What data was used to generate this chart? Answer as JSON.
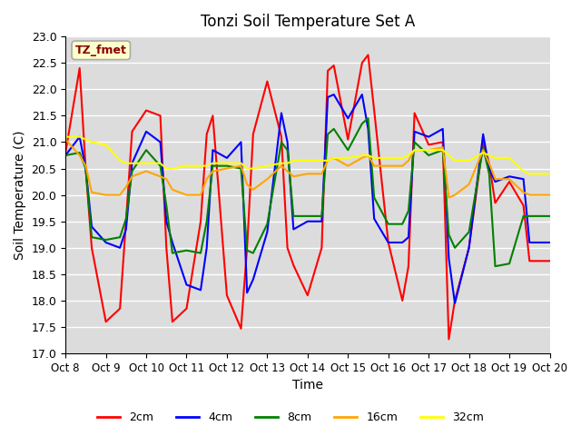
{
  "title": "Tonzi Soil Temperature Set A",
  "xlabel": "Time",
  "ylabel": "Soil Temperature (C)",
  "ylim": [
    17.0,
    23.0
  ],
  "yticks": [
    17.0,
    17.5,
    18.0,
    18.5,
    19.0,
    19.5,
    20.0,
    20.5,
    21.0,
    21.5,
    22.0,
    22.5,
    23.0
  ],
  "xtick_labels": [
    "Oct 8",
    "Oct 9",
    "Oct 10",
    "Oct 11",
    "Oct 12",
    "Oct 13",
    "Oct 14",
    "Oct 15",
    "Oct 16",
    "Oct 17",
    "Oct 18",
    "Oct 19",
    "Oct 20"
  ],
  "series_colors": [
    "red",
    "blue",
    "green",
    "orange",
    "yellow"
  ],
  "series_names": [
    "2cm",
    "4cm",
    "8cm",
    "16cm",
    "32cm"
  ],
  "legend_label": "TZ_fmet",
  "legend_label_color": "#8B0000",
  "legend_bg": "#FFFFCC",
  "background_color": "#DCDCDC",
  "x_2cm": [
    0.0,
    0.35,
    0.5,
    0.65,
    1.0,
    1.35,
    1.5,
    1.65,
    2.0,
    2.35,
    2.5,
    2.65,
    3.0,
    3.35,
    3.5,
    3.65,
    4.0,
    4.35,
    4.5,
    4.65,
    5.0,
    5.35,
    5.5,
    5.65,
    6.0,
    6.35,
    6.5,
    6.65,
    7.0,
    7.35,
    7.5,
    7.65,
    8.0,
    8.35,
    8.5,
    8.65,
    9.0,
    9.35,
    9.5,
    9.65,
    10.0,
    10.35,
    10.5,
    10.65,
    11.0,
    11.35,
    11.5,
    11.65,
    12.0
  ],
  "y_2cm": [
    20.8,
    22.4,
    20.5,
    19.0,
    17.6,
    17.85,
    19.5,
    21.2,
    21.6,
    21.5,
    19.0,
    17.6,
    17.85,
    19.5,
    21.15,
    21.5,
    18.1,
    17.47,
    19.0,
    21.15,
    22.15,
    21.1,
    19.0,
    18.67,
    18.1,
    19.0,
    22.35,
    22.45,
    21.05,
    22.5,
    22.65,
    21.6,
    19.1,
    18.0,
    18.65,
    21.55,
    20.95,
    21.0,
    17.27,
    18.0,
    19.0,
    21.0,
    20.6,
    19.85,
    20.25,
    19.8,
    18.75,
    18.75,
    18.75
  ],
  "x_4cm": [
    0.0,
    0.35,
    0.5,
    0.65,
    1.0,
    1.35,
    1.5,
    1.65,
    2.0,
    2.35,
    2.5,
    2.65,
    3.0,
    3.35,
    3.5,
    3.65,
    4.0,
    4.35,
    4.5,
    4.65,
    5.0,
    5.35,
    5.5,
    5.65,
    6.0,
    6.35,
    6.5,
    6.65,
    7.0,
    7.35,
    7.5,
    7.65,
    8.0,
    8.35,
    8.5,
    8.65,
    9.0,
    9.35,
    9.5,
    9.65,
    10.0,
    10.35,
    10.5,
    10.65,
    11.0,
    11.35,
    11.5,
    11.65,
    12.0
  ],
  "y_4cm": [
    20.75,
    21.1,
    20.5,
    19.4,
    19.1,
    19.0,
    19.35,
    20.6,
    21.2,
    21.0,
    19.5,
    19.1,
    18.3,
    18.2,
    19.0,
    20.85,
    20.7,
    21.0,
    18.15,
    18.4,
    19.3,
    21.55,
    21.0,
    19.35,
    19.5,
    19.5,
    21.85,
    21.9,
    21.45,
    21.9,
    21.25,
    19.55,
    19.1,
    19.1,
    19.2,
    21.2,
    21.1,
    21.25,
    18.8,
    17.95,
    19.0,
    21.15,
    20.5,
    20.25,
    20.35,
    20.3,
    19.1,
    19.1,
    19.1
  ],
  "x_8cm": [
    0.0,
    0.35,
    0.5,
    0.65,
    1.0,
    1.35,
    1.5,
    1.65,
    2.0,
    2.35,
    2.5,
    2.65,
    3.0,
    3.35,
    3.5,
    3.65,
    4.0,
    4.35,
    4.5,
    4.65,
    5.0,
    5.35,
    5.5,
    5.65,
    6.0,
    6.35,
    6.5,
    6.65,
    7.0,
    7.35,
    7.5,
    7.65,
    8.0,
    8.35,
    8.5,
    8.65,
    9.0,
    9.35,
    9.5,
    9.65,
    10.0,
    10.35,
    10.5,
    10.65,
    11.0,
    11.35,
    11.5,
    11.65,
    12.0
  ],
  "y_8cm": [
    20.75,
    20.8,
    20.5,
    19.2,
    19.15,
    19.2,
    19.55,
    20.45,
    20.85,
    20.55,
    19.8,
    18.9,
    18.95,
    18.9,
    19.5,
    20.55,
    20.55,
    20.5,
    18.95,
    18.9,
    19.45,
    21.0,
    20.85,
    19.6,
    19.6,
    19.6,
    21.15,
    21.25,
    20.85,
    21.35,
    21.45,
    19.95,
    19.45,
    19.45,
    19.7,
    21.0,
    20.75,
    20.85,
    19.25,
    19.0,
    19.3,
    20.9,
    20.4,
    18.65,
    18.7,
    19.6,
    19.6,
    19.6,
    19.6
  ],
  "x_16cm": [
    0.0,
    0.35,
    0.5,
    0.65,
    1.0,
    1.35,
    1.5,
    1.65,
    2.0,
    2.35,
    2.5,
    2.65,
    3.0,
    3.35,
    3.5,
    3.65,
    4.0,
    4.35,
    4.5,
    4.65,
    5.0,
    5.35,
    5.5,
    5.65,
    6.0,
    6.35,
    6.5,
    6.65,
    7.0,
    7.35,
    7.5,
    7.65,
    8.0,
    8.35,
    8.5,
    8.65,
    9.0,
    9.35,
    9.5,
    9.65,
    10.0,
    10.35,
    10.5,
    10.65,
    11.0,
    11.35,
    11.5,
    11.65,
    12.0
  ],
  "y_16cm": [
    21.05,
    20.75,
    20.55,
    20.05,
    20.0,
    20.0,
    20.15,
    20.35,
    20.45,
    20.35,
    20.3,
    20.1,
    20.0,
    20.0,
    20.3,
    20.45,
    20.5,
    20.55,
    20.2,
    20.1,
    20.3,
    20.55,
    20.45,
    20.35,
    20.4,
    20.4,
    20.65,
    20.7,
    20.55,
    20.7,
    20.75,
    20.55,
    20.55,
    20.55,
    20.65,
    20.85,
    20.85,
    20.9,
    19.95,
    20.0,
    20.2,
    20.85,
    20.6,
    20.3,
    20.3,
    20.05,
    20.0,
    20.0,
    20.0
  ],
  "x_32cm": [
    0.0,
    0.35,
    0.5,
    0.65,
    1.0,
    1.35,
    1.5,
    1.65,
    2.0,
    2.35,
    2.5,
    2.65,
    3.0,
    3.35,
    3.5,
    3.65,
    4.0,
    4.35,
    4.5,
    4.65,
    5.0,
    5.35,
    5.5,
    5.65,
    6.0,
    6.35,
    6.5,
    6.65,
    7.0,
    7.35,
    7.5,
    7.65,
    8.0,
    8.35,
    8.5,
    8.65,
    9.0,
    9.35,
    9.5,
    9.65,
    10.0,
    10.35,
    10.5,
    10.65,
    11.0,
    11.35,
    11.5,
    11.65,
    12.0
  ],
  "y_32cm": [
    21.1,
    21.1,
    21.05,
    21.0,
    20.95,
    20.65,
    20.6,
    20.6,
    20.6,
    20.6,
    20.5,
    20.5,
    20.55,
    20.55,
    20.55,
    20.6,
    20.6,
    20.6,
    20.5,
    20.5,
    20.55,
    20.6,
    20.6,
    20.65,
    20.65,
    20.65,
    20.65,
    20.7,
    20.7,
    20.75,
    20.75,
    20.7,
    20.7,
    20.7,
    20.75,
    20.85,
    20.85,
    20.85,
    20.75,
    20.65,
    20.65,
    20.8,
    20.75,
    20.7,
    20.7,
    20.45,
    20.4,
    20.4,
    20.4
  ]
}
